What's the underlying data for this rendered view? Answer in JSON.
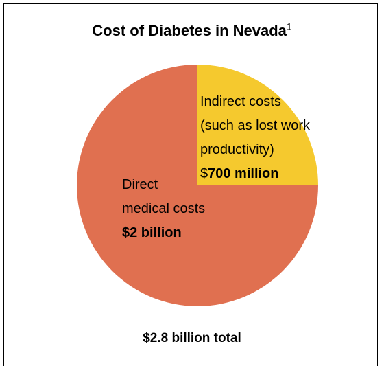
{
  "chart_data": {
    "type": "pie",
    "title": "Cost of Diabetes in Nevada",
    "title_footnote": "1",
    "slices": [
      {
        "label_lines": [
          "Direct",
          "medical costs"
        ],
        "value_text": "$2 billion",
        "value": 2.1,
        "color": "#E07050"
      },
      {
        "label_lines": [
          "Indirect costs",
          "(such as lost work",
          "productivity)"
        ],
        "value_prefix": "$",
        "value_text": "700 million",
        "value": 0.7,
        "color": "#F5C92E"
      }
    ],
    "total_label": "$2.8 billion total",
    "legend": "none"
  }
}
